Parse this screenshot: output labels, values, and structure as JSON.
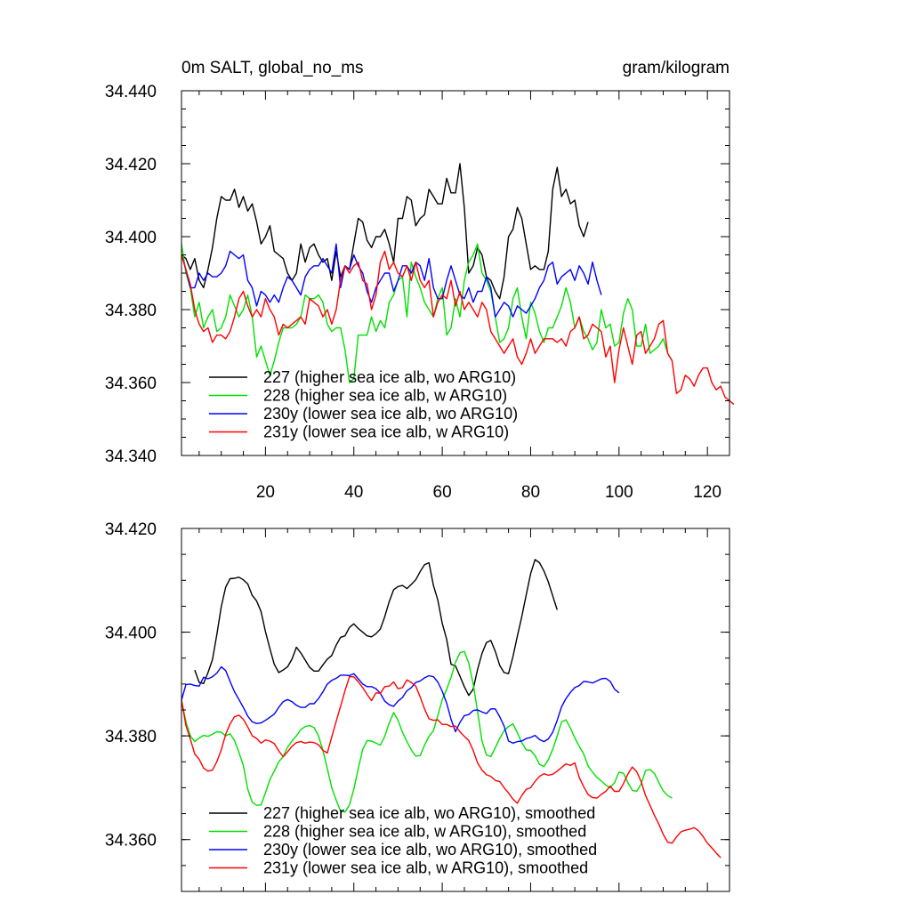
{
  "chart_data": [
    {
      "type": "line",
      "title_left": "0m SALT, global_no_ms",
      "title_right": "gram/kilogram",
      "xlim": [
        1,
        125
      ],
      "ylim": [
        34.34,
        34.44
      ],
      "xticks": [
        20,
        40,
        60,
        80,
        100,
        120
      ],
      "xtick_labels": [
        "20",
        "40",
        "60",
        "80",
        "100",
        "120"
      ],
      "yticks": [
        34.34,
        34.36,
        34.38,
        34.4,
        34.42,
        34.44
      ],
      "ytick_labels": [
        "34.340",
        "34.360",
        "34.380",
        "34.400",
        "34.420",
        "34.440"
      ],
      "grid": false,
      "legend_position": "bottom-left",
      "series": [
        {
          "name": "227 (higher sea ice alb, wo ARG10)",
          "color": "#000000",
          "x_start": 1,
          "values": [
            34.395,
            34.394,
            34.391,
            34.394,
            34.388,
            34.386,
            34.391,
            34.397,
            34.405,
            34.411,
            34.41,
            34.41,
            34.413,
            34.408,
            34.411,
            34.407,
            34.409,
            34.404,
            34.398,
            34.4,
            34.403,
            34.396,
            34.395,
            34.394,
            34.39,
            34.388,
            34.39,
            34.398,
            34.393,
            34.397,
            34.398,
            34.395,
            34.393,
            34.394,
            34.388,
            34.396,
            34.389,
            34.392,
            34.391,
            34.398,
            34.405,
            34.404,
            34.399,
            34.397,
            34.4,
            34.4,
            34.402,
            34.398,
            34.393,
            34.405,
            34.405,
            34.411,
            34.41,
            34.403,
            34.405,
            34.406,
            34.413,
            34.411,
            34.409,
            34.409,
            34.416,
            34.412,
            34.412,
            34.42,
            34.408,
            34.39,
            34.392,
            34.397,
            34.395,
            34.389,
            34.388,
            34.385,
            34.383,
            34.389,
            34.4,
            34.402,
            34.408,
            34.405,
            34.398,
            34.391,
            34.392,
            34.391,
            34.391,
            34.396,
            34.413,
            34.419,
            34.411,
            34.413,
            34.409,
            34.41,
            34.403,
            34.4,
            34.404
          ]
        },
        {
          "name": "228 (higher sea ice alb, w ARG10)",
          "color": "#00e000",
          "x_start": 1,
          "values": [
            34.398,
            34.39,
            34.386,
            34.378,
            34.382,
            34.375,
            34.378,
            34.38,
            34.374,
            34.375,
            34.378,
            34.384,
            34.381,
            34.378,
            34.38,
            34.384,
            34.378,
            34.367,
            34.37,
            34.366,
            34.362,
            34.366,
            34.371,
            34.375,
            34.375,
            34.375,
            34.376,
            34.378,
            34.384,
            34.383,
            34.383,
            34.384,
            34.382,
            34.376,
            34.374,
            34.375,
            34.375,
            34.369,
            34.36,
            34.361,
            34.373,
            34.373,
            34.373,
            34.378,
            34.374,
            34.377,
            34.375,
            34.382,
            34.384,
            34.388,
            34.389,
            34.378,
            34.393,
            34.389,
            34.386,
            34.382,
            34.38,
            34.378,
            34.383,
            34.386,
            34.373,
            34.375,
            34.383,
            34.378,
            34.388,
            34.393,
            34.395,
            34.398,
            34.39,
            34.388,
            34.385,
            34.378,
            34.371,
            34.372,
            34.375,
            34.383,
            34.386,
            34.378,
            34.372,
            34.382,
            34.379,
            34.374,
            34.371,
            34.375,
            34.375,
            34.378,
            34.381,
            34.386,
            34.382,
            34.375,
            34.378,
            34.374,
            34.372,
            34.369,
            34.371,
            34.38,
            34.375,
            34.376,
            34.37,
            34.371,
            34.379,
            34.383,
            34.38,
            34.37,
            34.37,
            34.376,
            34.368,
            34.369,
            34.37,
            34.372,
            34.368,
            34.366
          ]
        },
        {
          "name": "230y (lower sea ice alb, wo ARG10)",
          "color": "#0000ff",
          "x_start": 1,
          "values": [
            34.395,
            34.391,
            34.386,
            34.386,
            34.39,
            34.388,
            34.39,
            34.389,
            34.389,
            34.39,
            34.392,
            34.396,
            34.395,
            34.394,
            34.395,
            34.388,
            34.386,
            34.381,
            34.385,
            34.384,
            34.382,
            34.384,
            34.382,
            34.386,
            34.389,
            34.388,
            34.386,
            34.384,
            34.389,
            34.391,
            34.392,
            34.392,
            34.394,
            34.392,
            34.39,
            34.398,
            34.386,
            34.392,
            34.391,
            34.395,
            34.392,
            34.39,
            34.385,
            34.382,
            34.386,
            34.388,
            34.39,
            34.39,
            34.385,
            34.388,
            34.392,
            34.392,
            34.39,
            34.393,
            34.392,
            34.388,
            34.394,
            34.386,
            34.383,
            34.383,
            34.388,
            34.392,
            34.388,
            34.384,
            34.383,
            34.386,
            34.382,
            34.385,
            34.385,
            34.389,
            34.386,
            34.378,
            34.38,
            34.382,
            34.381,
            34.378,
            34.381,
            34.38,
            34.379,
            34.381,
            34.383,
            34.386,
            34.388,
            34.392,
            34.393,
            34.387,
            34.389,
            34.39,
            34.391,
            34.388,
            34.392,
            34.39,
            34.387,
            34.393,
            34.388,
            34.384
          ]
        },
        {
          "name": "231y (lower sea ice alb, w ARG10)",
          "color": "#ff0000",
          "x_start": 1,
          "values": [
            34.395,
            34.391,
            34.387,
            34.38,
            34.376,
            34.374,
            34.375,
            34.371,
            34.373,
            34.373,
            34.372,
            34.374,
            34.378,
            34.383,
            34.385,
            34.381,
            34.378,
            34.38,
            34.378,
            34.383,
            34.38,
            34.378,
            34.373,
            34.376,
            34.375,
            34.376,
            34.377,
            34.378,
            34.376,
            34.383,
            34.382,
            34.381,
            34.378,
            34.38,
            34.376,
            34.38,
            34.388,
            34.392,
            34.39,
            34.392,
            34.393,
            34.388,
            34.387,
            34.38,
            34.384,
            34.393,
            34.396,
            34.391,
            34.393,
            34.39,
            34.389,
            34.392,
            34.388,
            34.393,
            34.388,
            34.386,
            34.388,
            34.378,
            34.382,
            34.384,
            34.383,
            34.388,
            34.381,
            34.385,
            34.38,
            34.382,
            34.38,
            34.378,
            34.382,
            34.38,
            34.374,
            34.372,
            34.37,
            34.368,
            34.37,
            34.372,
            34.367,
            34.365,
            34.368,
            34.372,
            34.368,
            34.37,
            34.372,
            34.372,
            34.372,
            34.371,
            34.372,
            34.37,
            34.374,
            34.375,
            34.378,
            34.372,
            34.373,
            34.376,
            34.375,
            34.374,
            34.367,
            34.37,
            34.36,
            34.369,
            34.375,
            34.37,
            34.365,
            34.373,
            34.374,
            34.368,
            34.37,
            34.372,
            34.376,
            34.377,
            34.368,
            34.366,
            34.357,
            34.358,
            34.362,
            34.361,
            34.359,
            34.362,
            34.364,
            34.364,
            34.36,
            34.358,
            34.359,
            34.356,
            34.355,
            34.354
          ]
        }
      ]
    },
    {
      "type": "line",
      "xlim": [
        1,
        125
      ],
      "ylim": [
        34.35,
        34.42
      ],
      "xticks": [
        20,
        40,
        60,
        80,
        100,
        120
      ],
      "yticks": [
        34.36,
        34.38,
        34.4,
        34.42
      ],
      "ytick_labels": [
        "34.360",
        "34.380",
        "34.400",
        "34.420"
      ],
      "grid": false,
      "legend_position": "bottom-left",
      "series": [
        {
          "name": "227 (higher sea ice alb, wo ARG10), smoothed",
          "color": "#000000",
          "x_start": 4,
          "values": [
            34.3927,
            34.3903,
            34.3901,
            34.3922,
            34.3947,
            34.3995,
            34.4049,
            34.4087,
            34.4103,
            34.4104,
            34.4106,
            34.4101,
            34.4093,
            34.4071,
            34.406,
            34.404,
            34.4001,
            34.3968,
            34.3938,
            34.3922,
            34.3927,
            34.3933,
            34.3948,
            34.3971,
            34.396,
            34.3946,
            34.3932,
            34.3925,
            34.3925,
            34.3937,
            34.3948,
            34.3955,
            34.3975,
            34.399,
            34.3993,
            34.4009,
            34.4016,
            34.4007,
            34.4,
            34.3993,
            34.3991,
            34.3997,
            34.4006,
            34.403,
            34.4059,
            34.4082,
            34.4088,
            34.409,
            34.4084,
            34.4092,
            34.4101,
            34.4117,
            34.413,
            34.4134,
            34.409,
            34.4062,
            34.4017,
            34.3986,
            34.3938,
            34.3935,
            34.3915,
            34.3895,
            34.3878,
            34.389,
            34.3928,
            34.3959,
            34.398,
            34.3984,
            34.3963,
            34.3936,
            34.3922,
            34.392,
            34.3953,
            34.3992,
            34.403,
            34.4072,
            34.4113,
            34.414,
            34.4134,
            34.4118,
            34.4097,
            34.407,
            34.4043
          ]
        },
        {
          "name": "228 (higher sea ice alb, w ARG10), smoothed",
          "color": "#00e000",
          "x_start": 1,
          "values": [
            34.3869,
            34.3827,
            34.38,
            34.3789,
            34.3796,
            34.3801,
            34.3799,
            34.3803,
            34.3808,
            34.3807,
            34.38,
            34.3804,
            34.3791,
            34.3768,
            34.3743,
            34.3697,
            34.3672,
            34.3666,
            34.3667,
            34.369,
            34.3716,
            34.3732,
            34.375,
            34.376,
            34.3778,
            34.379,
            34.38,
            34.3812,
            34.3818,
            34.382,
            34.3816,
            34.38,
            34.3772,
            34.3737,
            34.37,
            34.3676,
            34.3655,
            34.3653,
            34.3667,
            34.3697,
            34.3737,
            34.3774,
            34.3791,
            34.379,
            34.3786,
            34.3782,
            34.3799,
            34.3825,
            34.3845,
            34.383,
            34.3807,
            34.3789,
            34.3773,
            34.3761,
            34.3762,
            34.3782,
            34.3799,
            34.381,
            34.3839,
            34.387,
            34.389,
            34.3913,
            34.3942,
            34.396,
            34.3963,
            34.394,
            34.39,
            34.3847,
            34.379,
            34.3763,
            34.376,
            34.3777,
            34.3795,
            34.381,
            34.3818,
            34.3823,
            34.3806,
            34.3787,
            34.3773,
            34.3772,
            34.3762,
            34.3745,
            34.3741,
            34.3754,
            34.3774,
            34.38,
            34.3827,
            34.3831,
            34.3815,
            34.3796,
            34.378,
            34.3765,
            34.3742,
            34.373,
            34.372,
            34.3713,
            34.3705,
            34.37,
            34.371,
            34.373,
            34.3728,
            34.371,
            34.3695,
            34.3693,
            34.3707,
            34.3733,
            34.3735,
            34.3728,
            34.371,
            34.3694,
            34.3685,
            34.368
          ]
        },
        {
          "name": "230y (lower sea ice alb, wo ARG10), smoothed",
          "color": "#0000ff",
          "x_start": 1,
          "values": [
            34.3869,
            34.3899,
            34.39,
            34.3897,
            34.3896,
            34.3913,
            34.391,
            34.3914,
            34.3921,
            34.3933,
            34.3926,
            34.3905,
            34.3885,
            34.387,
            34.3855,
            34.3838,
            34.3827,
            34.3824,
            34.3825,
            34.383,
            34.3836,
            34.3842,
            34.3855,
            34.3866,
            34.387,
            34.3866,
            34.3859,
            34.3855,
            34.3855,
            34.3862,
            34.3862,
            34.3872,
            34.3885,
            34.39,
            34.3907,
            34.3911,
            34.3917,
            34.3917,
            34.3916,
            34.392,
            34.391,
            34.39,
            34.3895,
            34.3895,
            34.3891,
            34.3882,
            34.3867,
            34.386,
            34.3857,
            34.3867,
            34.3874,
            34.3887,
            34.3893,
            34.3903,
            34.3906,
            34.3912,
            34.3916,
            34.3914,
            34.3904,
            34.3886,
            34.3863,
            34.3832,
            34.3808,
            34.3826,
            34.3839,
            34.3841,
            34.3849,
            34.385,
            34.3846,
            34.3843,
            34.3852,
            34.3852,
            34.3837,
            34.3819,
            34.379,
            34.3786,
            34.3789,
            34.379,
            34.3795,
            34.3797,
            34.3801,
            34.3793,
            34.3789,
            34.3794,
            34.3807,
            34.383,
            34.3856,
            34.3872,
            34.3884,
            34.3893,
            34.3897,
            34.3905,
            34.3904,
            34.3902,
            34.3906,
            34.391,
            34.3911,
            34.3905,
            34.389,
            34.3883
          ]
        },
        {
          "name": "231y (lower sea ice alb, w ARG10), smoothed",
          "color": "#ff0000",
          "x_start": 1,
          "values": [
            34.3869,
            34.382,
            34.3794,
            34.3765,
            34.3755,
            34.3738,
            34.3732,
            34.3734,
            34.375,
            34.3773,
            34.3803,
            34.3823,
            34.3837,
            34.384,
            34.3832,
            34.3817,
            34.38,
            34.3795,
            34.3786,
            34.3792,
            34.379,
            34.3785,
            34.3771,
            34.376,
            34.3769,
            34.378,
            34.3787,
            34.3789,
            34.3786,
            34.3788,
            34.3787,
            34.3783,
            34.3772,
            34.3767,
            34.3798,
            34.3828,
            34.3857,
            34.3887,
            34.3914,
            34.3914,
            34.3904,
            34.3893,
            34.388,
            34.3868,
            34.3883,
            34.3882,
            34.3895,
            34.3896,
            34.3904,
            34.3891,
            34.3893,
            34.3908,
            34.3903,
            34.3896,
            34.3875,
            34.3852,
            34.3833,
            34.383,
            34.3831,
            34.3822,
            34.3822,
            34.3818,
            34.3819,
            34.3808,
            34.3799,
            34.3791,
            34.3772,
            34.3748,
            34.3734,
            34.3725,
            34.3722,
            34.3714,
            34.3712,
            34.37,
            34.369,
            34.3678,
            34.367,
            34.3685,
            34.3697,
            34.37,
            34.3712,
            34.3722,
            34.3727,
            34.3724,
            34.3726,
            34.3732,
            34.3739,
            34.3746,
            34.3743,
            34.3748,
            34.372,
            34.3702,
            34.3687,
            34.3681,
            34.368,
            34.3687,
            34.3693,
            34.3703,
            34.3693,
            34.3693,
            34.3708,
            34.3726,
            34.374,
            34.3731,
            34.3712,
            34.3685,
            34.3666,
            34.3647,
            34.363,
            34.361,
            34.3595,
            34.3593,
            34.3605,
            34.3615,
            34.3618,
            34.362,
            34.3623,
            34.3617,
            34.3606,
            34.3593,
            34.3584,
            34.3574,
            34.3565
          ]
        }
      ]
    }
  ]
}
